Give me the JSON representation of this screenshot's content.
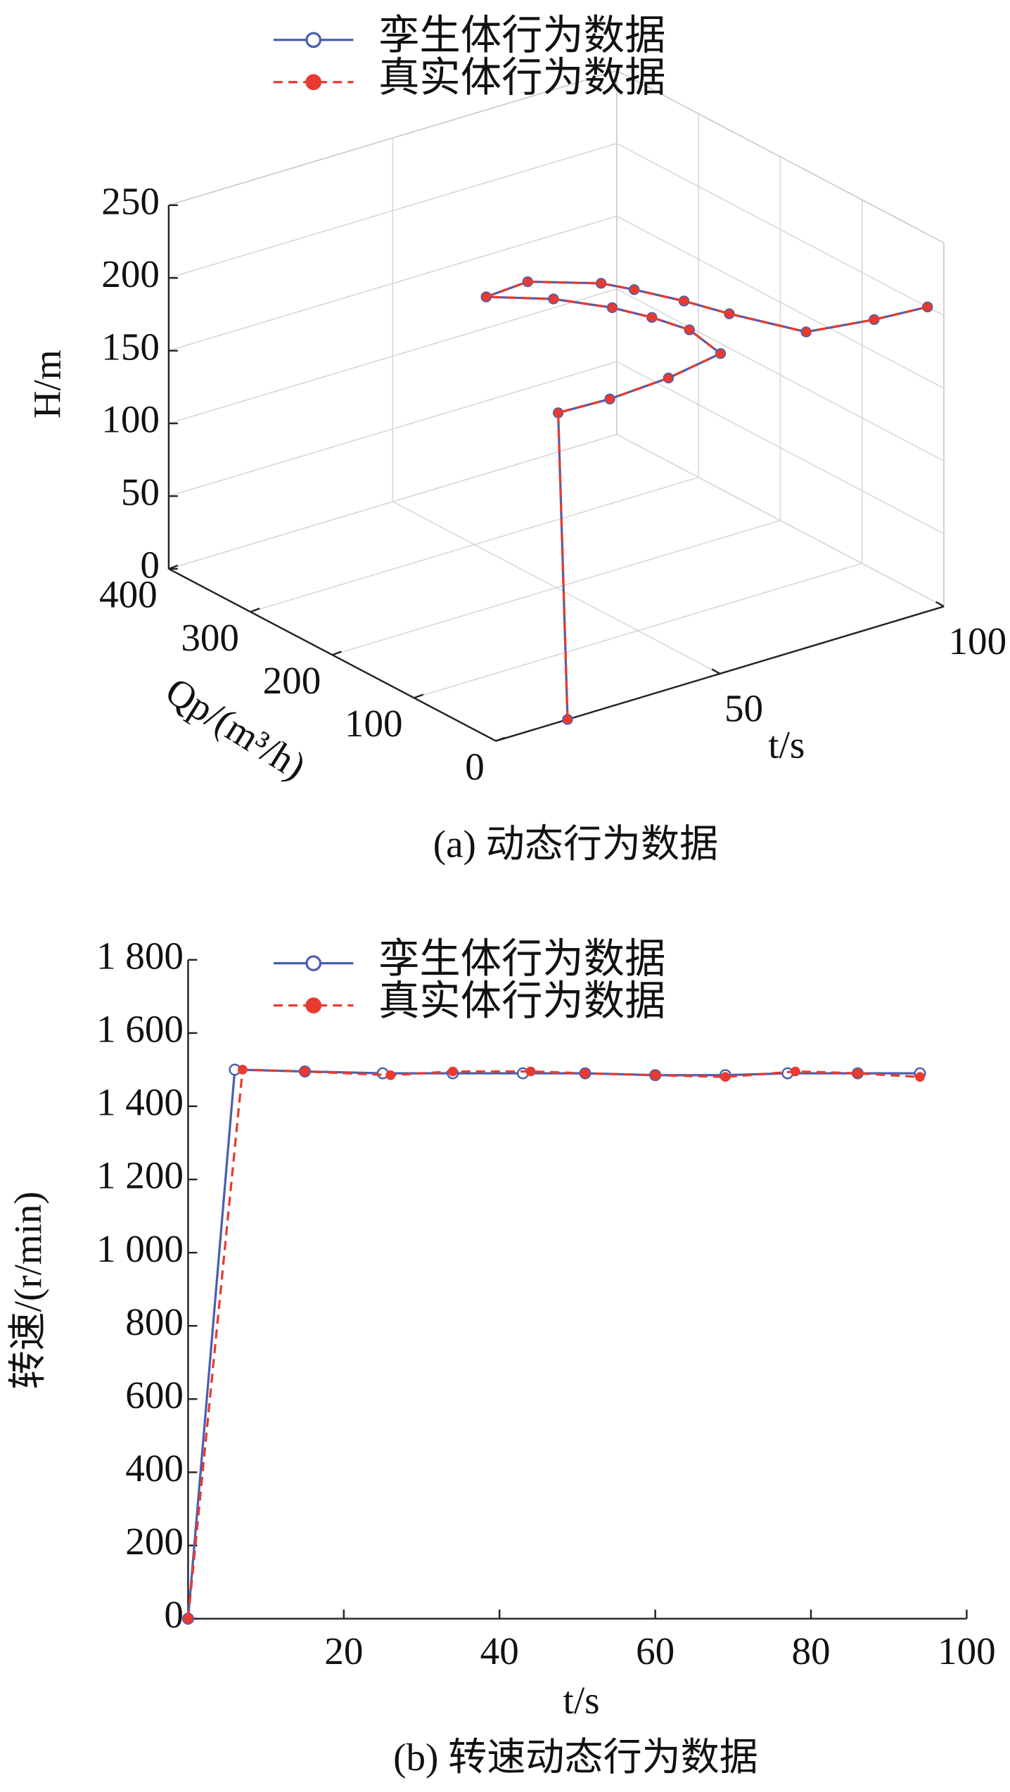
{
  "chart_data": [
    {
      "type": "line3d",
      "caption": "(a) 动态行为数据",
      "xlabel": "t/s",
      "ylabel": "Qp/(m³/h)",
      "zlabel": "H/m",
      "xlim": [
        0,
        100
      ],
      "xticks": [
        50,
        100
      ],
      "ylim": [
        0,
        400
      ],
      "yticks": [
        0,
        100,
        200,
        300,
        400
      ],
      "zlim": [
        0,
        250
      ],
      "zticks": [
        0,
        50,
        100,
        150,
        200,
        250
      ],
      "grid": true,
      "series": [
        {
          "name": "孪生体行为数据",
          "color": "#4b5fb0",
          "linestyle": "solid",
          "marker": "circle-open",
          "x": [
            16,
            15,
            30,
            44,
            58,
            60,
            58,
            55,
            49,
            40,
            50,
            60,
            63,
            67,
            70,
            76,
            89,
            100
          ],
          "y": [
            0,
            6,
            25,
            30,
            43,
            92,
            127,
            159,
            198,
            231,
            235,
            200,
            176,
            137,
            98,
            37,
            25,
            20
          ],
          "z": [
            0,
            210,
            200,
            200,
            200,
            200,
            200,
            200,
            200,
            200,
            200,
            200,
            200,
            200,
            200,
            200,
            200,
            200
          ]
        },
        {
          "name": "真实体行为数据",
          "color": "#e83a2f",
          "linestyle": "dashed",
          "marker": "circle-filled",
          "x": [
            16,
            15,
            30,
            44,
            58,
            60,
            58,
            55,
            49,
            40,
            50,
            60,
            63,
            67,
            70,
            76,
            89,
            100
          ],
          "y": [
            0,
            6,
            25,
            30,
            43,
            92,
            127,
            159,
            198,
            231,
            235,
            200,
            176,
            137,
            98,
            37,
            25,
            20
          ],
          "z": [
            0,
            210,
            200,
            200,
            200,
            200,
            200,
            200,
            200,
            200,
            200,
            200,
            200,
            200,
            200,
            200,
            200,
            200
          ]
        }
      ]
    },
    {
      "type": "line",
      "caption": "(b) 转速动态行为数据",
      "xlabel": "t/s",
      "ylabel": "转速/(r/min)",
      "xlim": [
        0,
        100
      ],
      "xticks": [
        20,
        40,
        60,
        80,
        100
      ],
      "ylim": [
        0,
        1800
      ],
      "yticks": [
        0,
        200,
        400,
        600,
        800,
        {
          "value": 1000,
          "label": "1 000"
        },
        {
          "value": 1200,
          "label": "1 200"
        },
        {
          "value": 1400,
          "label": "1 400"
        },
        {
          "value": 1600,
          "label": "1 600"
        },
        {
          "value": 1800,
          "label": "1 800"
        }
      ],
      "series": [
        {
          "name": "孪生体行为数据",
          "color": "#4b5fb0",
          "linestyle": "solid",
          "marker": "circle-open",
          "x": [
            0,
            6,
            15,
            25,
            34,
            43,
            51,
            60,
            69,
            77,
            86,
            94
          ],
          "y": [
            0,
            1500,
            1495,
            1490,
            1490,
            1490,
            1490,
            1485,
            1485,
            1490,
            1490,
            1490
          ]
        },
        {
          "name": "真实体行为数据",
          "color": "#e83a2f",
          "linestyle": "dashed",
          "marker": "circle-filled",
          "x": [
            0,
            7,
            15,
            26,
            34,
            44,
            51,
            60,
            69,
            78,
            86,
            94
          ],
          "y": [
            0,
            1500,
            1495,
            1485,
            1495,
            1495,
            1490,
            1485,
            1480,
            1495,
            1490,
            1480
          ]
        }
      ]
    }
  ]
}
